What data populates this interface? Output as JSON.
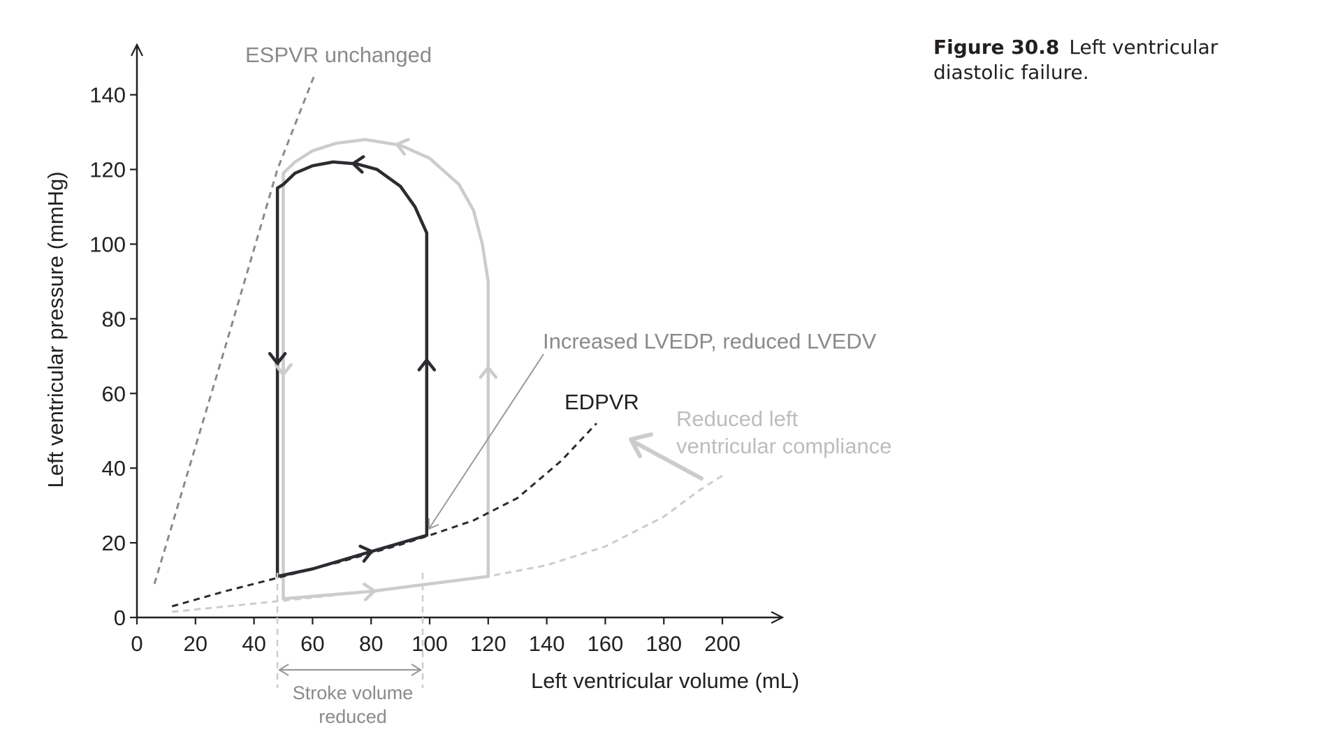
{
  "caption": {
    "label": "Figure 30.8",
    "text": "Left ventricular diastolic failure."
  },
  "chart_data": {
    "type": "line",
    "xlabel": "Left ventricular volume (mL)",
    "ylabel": "Left ventricular pressure (mmHg)",
    "xlim": [
      0,
      220
    ],
    "ylim": [
      0,
      150
    ],
    "xticks": [
      0,
      20,
      40,
      60,
      80,
      100,
      120,
      140,
      160,
      180,
      200
    ],
    "yticks": [
      0,
      20,
      40,
      60,
      80,
      100,
      120,
      140
    ],
    "grid": false,
    "colors": {
      "dark": "#2b2b30",
      "light": "#cccccc",
      "mid": "#8a8a8a",
      "text": "#231f20"
    },
    "series": [
      {
        "key": "edpvr",
        "style": "dark-dashed",
        "points": [
          [
            12,
            3
          ],
          [
            30,
            7
          ],
          [
            50,
            11
          ],
          [
            70,
            15
          ],
          [
            90,
            19.5
          ],
          [
            100,
            22
          ],
          [
            115,
            26
          ],
          [
            130,
            32
          ],
          [
            145,
            42
          ],
          [
            157,
            52
          ]
        ]
      },
      {
        "key": "edpvr_normal",
        "style": "light-dashed",
        "points": [
          [
            12,
            1.5
          ],
          [
            50,
            4.5
          ],
          [
            80,
            7
          ],
          [
            100,
            9
          ],
          [
            120,
            11
          ],
          [
            140,
            14
          ],
          [
            160,
            19
          ],
          [
            180,
            27
          ],
          [
            192,
            34
          ],
          [
            200,
            38
          ]
        ]
      },
      {
        "key": "espvr",
        "style": "mid-dashed",
        "points": [
          [
            6,
            9
          ],
          [
            30,
            72
          ],
          [
            48,
            120
          ],
          [
            61,
            146
          ]
        ]
      },
      {
        "key": "loop_diastolic_failure",
        "style": "dark-solid",
        "points": [
          [
            48,
            11
          ],
          [
            60,
            13
          ],
          [
            75,
            16.5
          ],
          [
            99,
            22
          ],
          [
            99,
            103
          ],
          [
            95,
            110
          ],
          [
            90,
            115.5
          ],
          [
            82,
            120
          ],
          [
            75,
            121.5
          ],
          [
            67,
            122
          ],
          [
            60,
            121
          ],
          [
            54,
            119
          ],
          [
            50,
            116
          ],
          [
            48,
            115
          ],
          [
            48,
            11
          ]
        ]
      },
      {
        "key": "loop_normal",
        "style": "light-solid",
        "points": [
          [
            50,
            5
          ],
          [
            80,
            7
          ],
          [
            100,
            9
          ],
          [
            120,
            11
          ],
          [
            120,
            90
          ],
          [
            118,
            100
          ],
          [
            115,
            109
          ],
          [
            110,
            116
          ],
          [
            100,
            123
          ],
          [
            90,
            126.5
          ],
          [
            78,
            128
          ],
          [
            68,
            127
          ],
          [
            60,
            125
          ],
          [
            54,
            122
          ],
          [
            50,
            119
          ],
          [
            50,
            5
          ]
        ]
      }
    ],
    "annotations": {
      "espvr": "ESPVR unchanged",
      "lvedp": "Increased LVEDP, reduced LVEDV",
      "edpvr": "EDPVR",
      "compliance_line1": "Reduced left",
      "compliance_line2": "ventricular compliance",
      "stroke_line1": "Stroke volume",
      "stroke_line2": "reduced"
    }
  }
}
